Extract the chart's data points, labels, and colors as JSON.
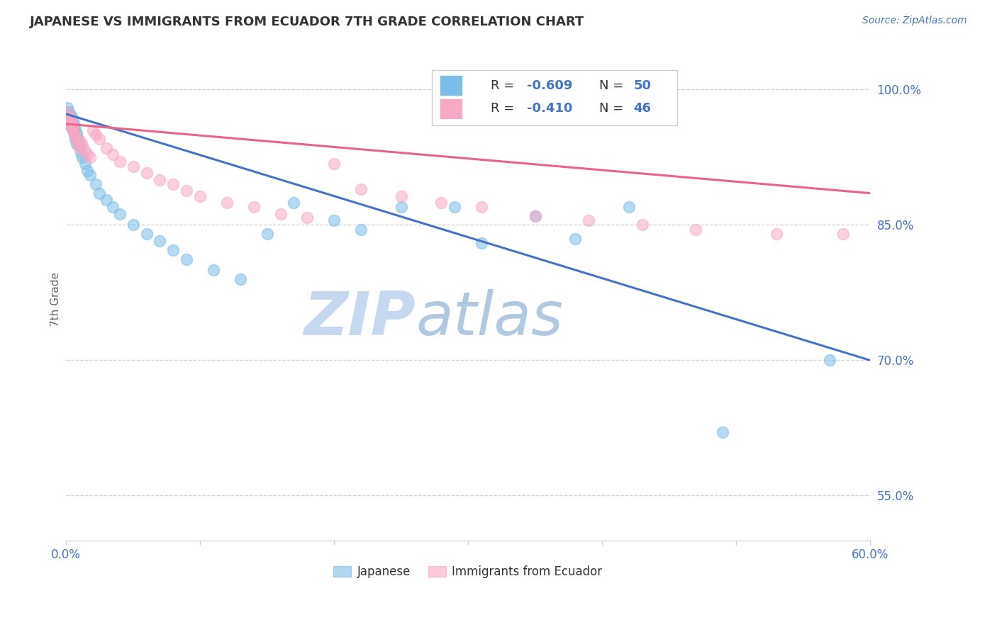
{
  "title": "JAPANESE VS IMMIGRANTS FROM ECUADOR 7TH GRADE CORRELATION CHART",
  "source_text": "Source: ZipAtlas.com",
  "ylabel": "7th Grade",
  "xlim": [
    0.0,
    0.6
  ],
  "ylim": [
    0.5,
    1.035
  ],
  "xticks": [
    0.0,
    0.1,
    0.2,
    0.3,
    0.4,
    0.5,
    0.6
  ],
  "xticklabels": [
    "0.0%",
    "",
    "",
    "",
    "",
    "",
    "60.0%"
  ],
  "ytick_positions": [
    0.55,
    0.7,
    0.85,
    1.0
  ],
  "ytick_labels": [
    "55.0%",
    "70.0%",
    "85.0%",
    "100.0%"
  ],
  "blue_color": "#7bbde8",
  "pink_color": "#f7a8c4",
  "blue_line_color": "#4472c4",
  "pink_line_color": "#e8648a",
  "watermark_zip_color": "#c8ddf0",
  "watermark_atlas_color": "#b8ccdf",
  "R_blue": -0.609,
  "N_blue": 50,
  "R_pink": -0.41,
  "N_pink": 46,
  "blue_intercept": 0.973,
  "blue_slope": -0.455,
  "pink_intercept": 0.962,
  "pink_slope": -0.128,
  "blue_scatter_x": [
    0.001,
    0.001,
    0.002,
    0.002,
    0.002,
    0.003,
    0.003,
    0.003,
    0.004,
    0.004,
    0.004,
    0.005,
    0.005,
    0.006,
    0.006,
    0.007,
    0.007,
    0.008,
    0.008,
    0.009,
    0.01,
    0.011,
    0.012,
    0.014,
    0.016,
    0.018,
    0.022,
    0.025,
    0.03,
    0.035,
    0.04,
    0.05,
    0.06,
    0.07,
    0.08,
    0.09,
    0.11,
    0.13,
    0.15,
    0.17,
    0.2,
    0.22,
    0.25,
    0.29,
    0.31,
    0.35,
    0.38,
    0.42,
    0.49,
    0.57
  ],
  "blue_scatter_y": [
    0.98,
    0.975,
    0.97,
    0.965,
    0.975,
    0.968,
    0.96,
    0.972,
    0.962,
    0.958,
    0.97,
    0.955,
    0.965,
    0.95,
    0.96,
    0.945,
    0.955,
    0.94,
    0.952,
    0.945,
    0.938,
    0.93,
    0.925,
    0.918,
    0.91,
    0.905,
    0.895,
    0.885,
    0.878,
    0.87,
    0.862,
    0.85,
    0.84,
    0.832,
    0.822,
    0.812,
    0.8,
    0.79,
    0.84,
    0.875,
    0.855,
    0.845,
    0.87,
    0.87,
    0.83,
    0.86,
    0.835,
    0.87,
    0.62,
    0.7
  ],
  "pink_scatter_x": [
    0.001,
    0.002,
    0.002,
    0.003,
    0.003,
    0.004,
    0.004,
    0.005,
    0.005,
    0.006,
    0.007,
    0.008,
    0.009,
    0.01,
    0.011,
    0.012,
    0.014,
    0.016,
    0.018,
    0.02,
    0.022,
    0.025,
    0.03,
    0.035,
    0.04,
    0.05,
    0.06,
    0.07,
    0.08,
    0.09,
    0.1,
    0.12,
    0.14,
    0.16,
    0.18,
    0.2,
    0.22,
    0.25,
    0.28,
    0.31,
    0.35,
    0.39,
    0.43,
    0.47,
    0.53,
    0.58
  ],
  "pink_scatter_y": [
    0.975,
    0.97,
    0.965,
    0.968,
    0.962,
    0.958,
    0.965,
    0.955,
    0.96,
    0.952,
    0.948,
    0.945,
    0.94,
    0.935,
    0.942,
    0.938,
    0.932,
    0.928,
    0.925,
    0.955,
    0.95,
    0.945,
    0.935,
    0.928,
    0.92,
    0.915,
    0.908,
    0.9,
    0.895,
    0.888,
    0.882,
    0.875,
    0.87,
    0.862,
    0.858,
    0.918,
    0.89,
    0.882,
    0.875,
    0.87,
    0.86,
    0.855,
    0.85,
    0.845,
    0.84,
    0.84
  ]
}
